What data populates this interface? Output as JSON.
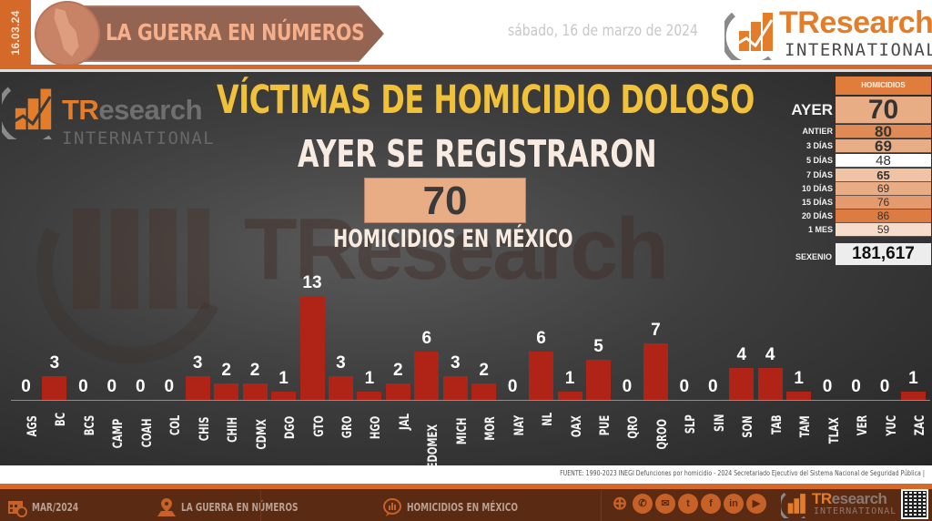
{
  "header": {
    "date_strip": "16.03.24",
    "banner_title": "LA GUERRA EN NÚMEROS",
    "date_long": "sábado, 16 de marzo de 2024",
    "logo": {
      "brand_tr": "TR",
      "brand_rest": "esearch",
      "brand_sub": "INTERNATIONAL"
    }
  },
  "main": {
    "title": "VÍCTIMAS DE HOMICIDIO DOLOSO",
    "subtitle": "AYER SE REGISTRARON",
    "big_value": "70",
    "caption": "HOMICIDIOS EN MÉXICO",
    "watermark": "TResearch",
    "logo": {
      "brand_tr": "TR",
      "brand_rest": "esearch",
      "brand_sub": "INTERNATIONAL"
    }
  },
  "side_table": {
    "header": "HOMICIDIOS",
    "rows": [
      {
        "label": "AYER",
        "value": "70",
        "color": "#e8ad85"
      },
      {
        "label": "ANTIER",
        "value": "80",
        "color": "#e08a55"
      },
      {
        "label": "3 DÍAS",
        "value": "69",
        "color": "#e8ad85"
      },
      {
        "label": "5 DÍAS",
        "value": "48",
        "color": "#ffffff"
      },
      {
        "label": "7 DÍAS",
        "value": "65",
        "color": "#f0c3a4"
      },
      {
        "label": "10 DÍAS",
        "value": "69",
        "color": "#e8ad85"
      },
      {
        "label": "15 DÍAS",
        "value": "76",
        "color": "#e49a6c"
      },
      {
        "label": "20 DÍAS",
        "value": "86",
        "color": "#dc7c42"
      },
      {
        "label": "1 MES",
        "value": "59",
        "color": "#f6dccb"
      }
    ],
    "sexenio_label": "SEXENIO",
    "sexenio_value": "181,617"
  },
  "chart_data": {
    "type": "bar",
    "title": "VÍCTIMAS DE HOMICIDIO DOLOSO",
    "xlabel": "",
    "ylabel": "",
    "categories": [
      "AGS",
      "BC",
      "BCS",
      "CAMP",
      "COAH",
      "COL",
      "CHIS",
      "CHIH",
      "CDMX",
      "DGO",
      "GTO",
      "GRO",
      "HGO",
      "JAL",
      "EDOMEX",
      "MICH",
      "MOR",
      "NAY",
      "NL",
      "OAX",
      "PUE",
      "QRO",
      "QROO",
      "SLP",
      "SIN",
      "SON",
      "TAB",
      "TAM",
      "TLAX",
      "VER",
      "YUC",
      "ZAC"
    ],
    "values": [
      0,
      3,
      0,
      0,
      0,
      0,
      3,
      2,
      2,
      1,
      13,
      3,
      1,
      2,
      6,
      3,
      2,
      0,
      6,
      1,
      5,
      0,
      7,
      0,
      0,
      4,
      4,
      1,
      0,
      0,
      0,
      1
    ],
    "bar_color": "#b02418",
    "ylim": [
      0,
      14
    ],
    "grid": false,
    "data_labels": true,
    "legend": "none"
  },
  "source": "FUENTE: 1990-2023 INEGI Defunciones por homicidio - 2024 Secretariado Ejecutivo del Sistema Nacional de Seguridad Pública |",
  "footer": {
    "items": [
      {
        "icon": "calendar-icon",
        "label": "MAR/2024"
      },
      {
        "icon": "map-pin-icon",
        "label": "LA GUERRA EN NÚMEROS"
      },
      {
        "icon": "chat-chart-icon",
        "label": "HOMICIDIOS EN MÉXICO"
      }
    ],
    "social": [
      {
        "icon": "globe-icon",
        "glyph": "⊕"
      },
      {
        "icon": "phone-icon",
        "glyph": "✆"
      },
      {
        "icon": "mail-icon",
        "glyph": "✉"
      },
      {
        "icon": "twitter-icon",
        "glyph": "t"
      },
      {
        "icon": "facebook-icon",
        "glyph": "f"
      },
      {
        "icon": "linkedin-icon",
        "glyph": "in"
      },
      {
        "icon": "youtube-icon",
        "glyph": "▶"
      }
    ],
    "logo": {
      "brand_tr": "TR",
      "brand_rest": "esearch",
      "brand_sub": "INTERNATIONAL"
    }
  },
  "colors": {
    "accent_orange": "#d4692a",
    "title_yellow": "#f2c13a",
    "bar_red": "#b02418",
    "footer_brown": "#5a2a12"
  }
}
